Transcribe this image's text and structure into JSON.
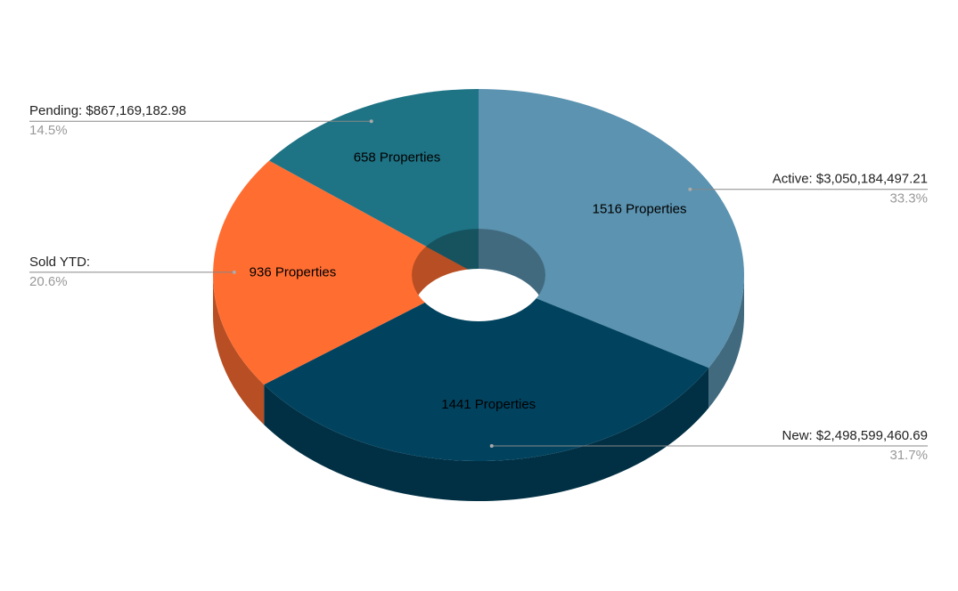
{
  "chart_data": {
    "type": "donut3d",
    "categories": [
      "Active: $3,050,184,497.21",
      "New: $2,498,599,460.69",
      "Sold YTD:",
      "Pending: $867,169,182.98"
    ],
    "values": [
      1516,
      1441,
      936,
      658
    ],
    "value_labels": [
      "1516 Properties",
      "1441 Properties",
      "936 Properties",
      "658 Properties"
    ],
    "percent_labels": [
      "33.3%",
      "31.7%",
      "20.6%",
      "14.5%"
    ],
    "colors": [
      "#5b93b0",
      "#01435f",
      "#ff6d31",
      "#1e7384"
    ]
  }
}
